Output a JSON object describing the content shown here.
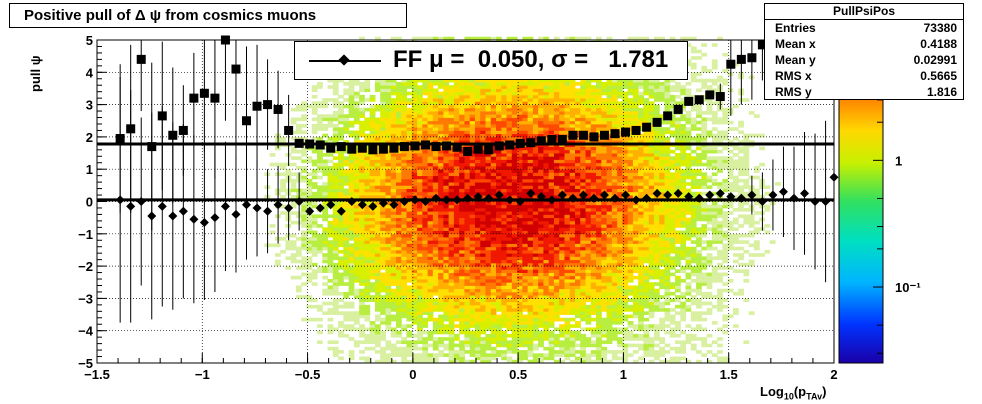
{
  "chart_data": {
    "type": "heatmap",
    "title": "Positive pull of Δ ψ from cosmics muons",
    "xlabel": "Log",
    "xlabel_sub": "10",
    "xlabel_paren": "(p",
    "xlabel_paren_sub": "TAv",
    "xlabel_close": ")",
    "ylabel": "pull ψ",
    "xlim": [
      -1.5,
      2
    ],
    "ylim": [
      -5,
      5
    ],
    "x_ticks": [
      {
        "v": -1.5,
        "label": "−1.5"
      },
      {
        "v": -1,
        "label": "−1"
      },
      {
        "v": -0.5,
        "label": "−0.5"
      },
      {
        "v": 0,
        "label": "0"
      },
      {
        "v": 0.5,
        "label": "0.5"
      },
      {
        "v": 1,
        "label": "1"
      },
      {
        "v": 1.5,
        "label": "1.5"
      },
      {
        "v": 2,
        "label": "2"
      }
    ],
    "y_ticks": [
      {
        "v": 5,
        "label": "5"
      },
      {
        "v": 4,
        "label": "4"
      },
      {
        "v": 3,
        "label": "3"
      },
      {
        "v": 2,
        "label": "2"
      },
      {
        "v": 1,
        "label": "1"
      },
      {
        "v": 0,
        "label": "0"
      },
      {
        "v": -1,
        "label": "−1"
      },
      {
        "v": -2,
        "label": "−2"
      },
      {
        "v": -3,
        "label": "−3"
      },
      {
        "v": -4,
        "label": "−4"
      },
      {
        "v": -5,
        "label": "−5"
      }
    ],
    "grid": true,
    "colorbar": {
      "scale": "log",
      "labels": [
        {
          "v": 1,
          "label": "1"
        },
        {
          "v": 0.1,
          "label": "10⁻¹"
        }
      ]
    },
    "fit_lines": [
      {
        "y": 1.78
      },
      {
        "y": 0.05
      }
    ],
    "legend": {
      "text": "FF μ =  0.050, σ =   1.781",
      "placement": "top-center"
    },
    "stats": {
      "title": "PullPsiPos",
      "rows": [
        {
          "k": "Entries",
          "v": "73380"
        },
        {
          "k": "Mean x",
          "v": "0.4188"
        },
        {
          "k": "Mean y",
          "v": "0.02991"
        },
        {
          "k": "RMS x",
          "v": "0.5665"
        },
        {
          "k": "RMS y",
          "v": "1.816"
        }
      ]
    },
    "series": [
      {
        "marker": "square",
        "x": [
          -1.39,
          -1.34,
          -1.29,
          -1.24,
          -1.19,
          -1.14,
          -1.09,
          -1.04,
          -0.99,
          -0.94,
          -0.89,
          -0.84,
          -0.79,
          -0.74,
          -0.69,
          -0.64,
          -0.59,
          -0.54,
          -0.49,
          -0.44,
          -0.39,
          -0.34,
          -0.29,
          -0.24,
          -0.19,
          -0.14,
          -0.09,
          -0.04,
          0.01,
          0.06,
          0.11,
          0.16,
          0.21,
          0.26,
          0.31,
          0.36,
          0.41,
          0.46,
          0.51,
          0.56,
          0.61,
          0.66,
          0.71,
          0.76,
          0.81,
          0.86,
          0.91,
          0.96,
          1.01,
          1.06,
          1.11,
          1.16,
          1.21,
          1.26,
          1.31,
          1.36,
          1.41,
          1.46,
          1.51,
          1.56,
          1.61,
          1.66
        ],
        "y": [
          1.95,
          2.25,
          4.4,
          1.7,
          2.65,
          2.05,
          2.2,
          3.2,
          3.35,
          3.2,
          5.0,
          4.1,
          2.5,
          2.95,
          3.0,
          2.85,
          2.2,
          1.8,
          1.78,
          1.75,
          1.65,
          1.7,
          1.62,
          1.65,
          1.6,
          1.62,
          1.65,
          1.7,
          1.72,
          1.75,
          1.7,
          1.72,
          1.68,
          1.55,
          1.62,
          1.6,
          1.72,
          1.75,
          1.8,
          1.82,
          1.88,
          1.92,
          1.92,
          2.05,
          2.05,
          2.0,
          2.05,
          2.1,
          2.15,
          2.2,
          2.3,
          2.45,
          2.65,
          2.85,
          3.1,
          3.15,
          3.3,
          3.25,
          4.25,
          4.4,
          4.45,
          4.85
        ],
        "err": [
          2.3,
          2.6,
          1.6,
          2.6,
          2.3,
          2.1,
          1.4,
          1.4,
          1.8,
          2.5,
          2.5,
          2.8,
          2.3,
          1.9,
          1.4,
          1.2,
          1.1,
          0,
          0,
          0,
          0,
          0,
          0,
          0,
          0,
          0,
          0,
          0,
          0,
          0,
          0,
          0,
          0,
          0,
          0,
          0,
          0,
          0,
          0,
          0,
          0,
          0,
          0,
          0,
          0,
          0,
          0,
          0,
          0,
          0,
          0,
          0,
          0,
          0,
          0,
          0,
          0,
          0.4,
          1.6,
          1.4,
          1.3,
          1.1
        ]
      },
      {
        "marker": "diamond",
        "x": [
          -1.39,
          -1.34,
          -1.29,
          -1.24,
          -1.19,
          -1.14,
          -1.09,
          -1.04,
          -0.99,
          -0.94,
          -0.89,
          -0.84,
          -0.79,
          -0.74,
          -0.69,
          -0.64,
          -0.59,
          -0.54,
          -0.49,
          -0.44,
          -0.39,
          -0.34,
          -0.29,
          -0.24,
          -0.19,
          -0.14,
          -0.09,
          -0.04,
          0.01,
          0.06,
          0.11,
          0.16,
          0.21,
          0.26,
          0.31,
          0.36,
          0.41,
          0.46,
          0.51,
          0.56,
          0.61,
          0.66,
          0.71,
          0.76,
          0.81,
          0.86,
          0.91,
          0.96,
          1.01,
          1.06,
          1.11,
          1.16,
          1.21,
          1.26,
          1.31,
          1.36,
          1.41,
          1.46,
          1.51,
          1.56,
          1.61,
          1.66,
          1.71,
          1.76,
          1.81,
          1.86,
          1.91,
          1.96,
          2.0
        ],
        "y": [
          0.05,
          -0.15,
          0.0,
          -0.45,
          -0.15,
          -0.45,
          -0.3,
          -0.55,
          -0.65,
          -0.5,
          -0.15,
          -0.4,
          -0.1,
          -0.2,
          -0.3,
          -0.1,
          -0.2,
          0.0,
          -0.3,
          -0.2,
          -0.1,
          -0.3,
          0.0,
          -0.1,
          -0.15,
          -0.05,
          -0.1,
          0.0,
          0.05,
          0.0,
          0.1,
          0.05,
          0.05,
          0.1,
          0.15,
          0.1,
          0.2,
          0.05,
          0.0,
          0.25,
          0.15,
          0.05,
          0.2,
          0.1,
          0.2,
          0.1,
          0.2,
          0.1,
          0.2,
          0.05,
          0.1,
          0.25,
          0.2,
          0.25,
          0.15,
          0.1,
          0.2,
          0.25,
          0.15,
          0.1,
          0.2,
          0.0,
          0.2,
          0.3,
          0.1,
          0.25,
          0.0,
          0.0,
          0.75
        ],
        "err": [
          3.8,
          3.6,
          2.6,
          3.2,
          3.1,
          2.9,
          2.7,
          2.6,
          2.4,
          2.3,
          2.0,
          1.8,
          1.7,
          1.5,
          1.3,
          1.2,
          1.0,
          0.9,
          0,
          0,
          0,
          0,
          0,
          0,
          0,
          0,
          0,
          0,
          0,
          0,
          0,
          0,
          0,
          0,
          0,
          0,
          0,
          0,
          0,
          0,
          0,
          0,
          0,
          0,
          0,
          0,
          0,
          0,
          0,
          0,
          0,
          0,
          0,
          0,
          0,
          0,
          0,
          0,
          0,
          0,
          0.6,
          0.9,
          1.1,
          1.4,
          1.6,
          1.9,
          2.1,
          2.5,
          3.0
        ]
      }
    ]
  }
}
